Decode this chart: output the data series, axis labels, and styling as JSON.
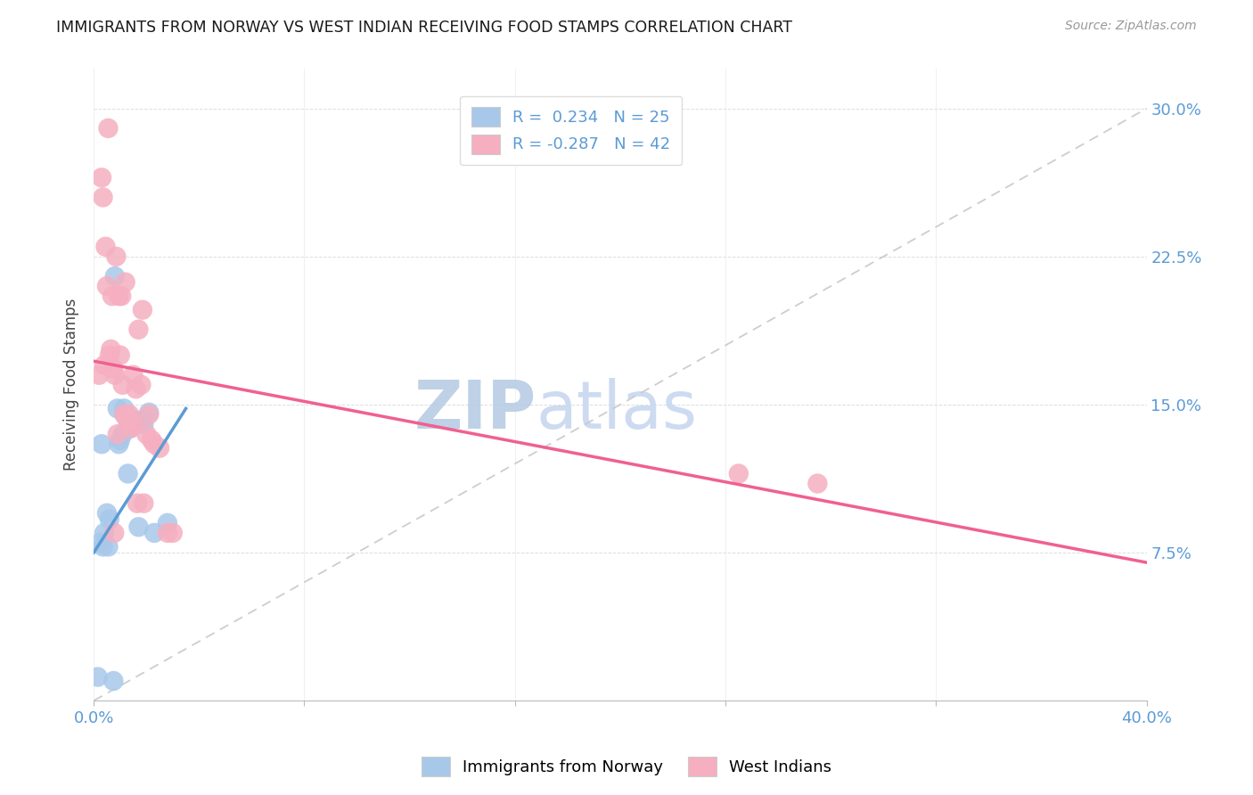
{
  "title": "IMMIGRANTS FROM NORWAY VS WEST INDIAN RECEIVING FOOD STAMPS CORRELATION CHART",
  "source": "Source: ZipAtlas.com",
  "ylabel": "Receiving Food Stamps",
  "xlim": [
    0.0,
    40.0
  ],
  "ylim": [
    0.0,
    32.0
  ],
  "ytick_vals": [
    7.5,
    15.0,
    22.5,
    30.0
  ],
  "ytick_labels": [
    "7.5%",
    "15.0%",
    "22.5%",
    "30.0%"
  ],
  "xtick_vals": [
    0.0,
    8.0,
    16.0,
    24.0,
    32.0,
    40.0
  ],
  "xtick_labels": [
    "0.0%",
    "",
    "",
    "",
    "",
    "40.0%"
  ],
  "legend_norway_r": " 0.234",
  "legend_norway_n": "25",
  "legend_westindian_r": "-0.287",
  "legend_westindian_n": "42",
  "norway_color": "#a8c8ea",
  "westindian_color": "#f5afc0",
  "norway_line_color": "#5b9bd5",
  "westindian_line_color": "#f06090",
  "diagonal_color": "#c8c8c8",
  "watermark_zip": "ZIP",
  "watermark_atlas": "atlas",
  "watermark_color": "#c8d8f0",
  "norway_scatter_x": [
    0.4,
    0.6,
    0.9,
    1.1,
    1.4,
    1.6,
    1.9,
    2.1,
    0.25,
    0.35,
    0.5,
    0.8,
    1.0,
    1.3,
    1.7,
    2.3,
    2.8,
    0.15,
    0.55,
    0.95,
    1.25,
    1.85,
    0.75,
    1.15,
    0.3
  ],
  "norway_scatter_y": [
    8.5,
    9.2,
    14.8,
    13.5,
    13.8,
    14.2,
    14.0,
    14.6,
    8.0,
    7.8,
    9.5,
    21.5,
    13.2,
    11.5,
    8.8,
    8.5,
    9.0,
    1.2,
    7.8,
    13.0,
    14.3,
    14.2,
    1.0,
    14.8,
    13.0
  ],
  "westindian_scatter_x": [
    0.2,
    0.35,
    0.4,
    0.5,
    0.55,
    0.65,
    0.7,
    0.75,
    0.8,
    0.85,
    0.9,
    0.95,
    1.0,
    1.05,
    1.1,
    1.15,
    1.2,
    1.25,
    1.3,
    1.35,
    1.4,
    1.5,
    1.55,
    1.6,
    1.65,
    1.7,
    1.8,
    1.9,
    2.0,
    2.1,
    2.2,
    2.5,
    2.8,
    3.0,
    0.3,
    0.45,
    0.6,
    0.78,
    1.85,
    2.3,
    24.5,
    27.5
  ],
  "westindian_scatter_y": [
    16.5,
    25.5,
    17.0,
    21.0,
    29.0,
    17.8,
    20.5,
    16.8,
    16.5,
    22.5,
    13.5,
    20.5,
    17.5,
    20.5,
    16.0,
    14.5,
    21.2,
    14.5,
    14.2,
    14.5,
    13.8,
    16.5,
    14.0,
    15.8,
    10.0,
    18.8,
    16.0,
    10.0,
    13.5,
    14.5,
    13.2,
    12.8,
    8.5,
    8.5,
    26.5,
    23.0,
    17.5,
    8.5,
    19.8,
    13.0,
    11.5,
    11.0
  ],
  "norway_line_x0": 0.0,
  "norway_line_x1": 3.5,
  "norway_line_y0": 7.5,
  "norway_line_y1": 14.8,
  "westindian_line_x0": 0.0,
  "westindian_line_x1": 40.0,
  "westindian_line_y0": 17.2,
  "westindian_line_y1": 7.0
}
